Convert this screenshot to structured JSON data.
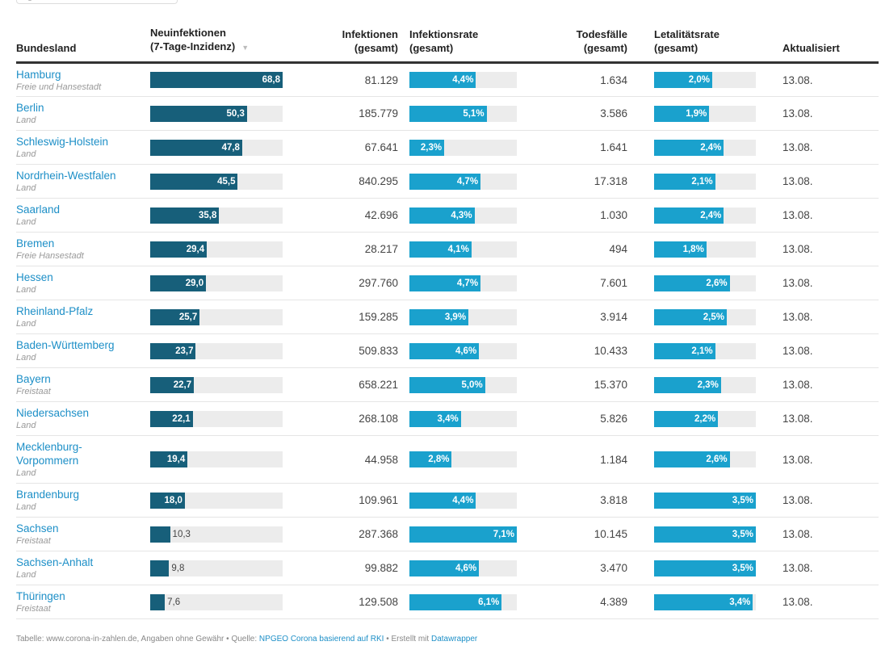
{
  "headers": {
    "state": "Bundesland",
    "incidence_line1": "Neuinfektionen",
    "incidence_line2": "(7-Tage-Inzidenz)",
    "infections_line1": "Infektionen",
    "infections_line2": "(gesamt)",
    "infection_rate_line1": "Infektionsrate",
    "infection_rate_line2": "(gesamt)",
    "deaths_line1": "Todesfälle",
    "deaths_line2": "(gesamt)",
    "lethality_line1": "Letalitätsrate",
    "lethality_line2": "(gesamt)",
    "updated": "Aktualisiert",
    "sort_icon": "▼"
  },
  "colors": {
    "incidence_bar": "#175f7a",
    "rate_bar": "#1aa1cd",
    "bar_track": "#ececec",
    "link": "#1d8fc7"
  },
  "scales": {
    "incidence_max": 68.8,
    "infection_rate_max": 7.1,
    "lethality_max": 3.5
  },
  "rows": [
    {
      "state": "Hamburg",
      "type": "Freie und Hansestadt",
      "incidence": 68.8,
      "incidence_label": "68,8",
      "infections": "81.129",
      "infection_rate": 4.4,
      "infection_rate_label": "4,4%",
      "deaths": "1.634",
      "lethality": 2.0,
      "lethality_label": "2,0%",
      "updated": "13.08."
    },
    {
      "state": "Berlin",
      "type": "Land",
      "incidence": 50.3,
      "incidence_label": "50,3",
      "infections": "185.779",
      "infection_rate": 5.1,
      "infection_rate_label": "5,1%",
      "deaths": "3.586",
      "lethality": 1.9,
      "lethality_label": "1,9%",
      "updated": "13.08."
    },
    {
      "state": "Schleswig-Holstein",
      "type": "Land",
      "incidence": 47.8,
      "incidence_label": "47,8",
      "infections": "67.641",
      "infection_rate": 2.3,
      "infection_rate_label": "2,3%",
      "deaths": "1.641",
      "lethality": 2.4,
      "lethality_label": "2,4%",
      "updated": "13.08."
    },
    {
      "state": "Nordrhein-Westfalen",
      "type": "Land",
      "incidence": 45.5,
      "incidence_label": "45,5",
      "infections": "840.295",
      "infection_rate": 4.7,
      "infection_rate_label": "4,7%",
      "deaths": "17.318",
      "lethality": 2.1,
      "lethality_label": "2,1%",
      "updated": "13.08."
    },
    {
      "state": "Saarland",
      "type": "Land",
      "incidence": 35.8,
      "incidence_label": "35,8",
      "infections": "42.696",
      "infection_rate": 4.3,
      "infection_rate_label": "4,3%",
      "deaths": "1.030",
      "lethality": 2.4,
      "lethality_label": "2,4%",
      "updated": "13.08."
    },
    {
      "state": "Bremen",
      "type": "Freie Hansestadt",
      "incidence": 29.4,
      "incidence_label": "29,4",
      "infections": "28.217",
      "infection_rate": 4.1,
      "infection_rate_label": "4,1%",
      "deaths": "494",
      "lethality": 1.8,
      "lethality_label": "1,8%",
      "updated": "13.08."
    },
    {
      "state": "Hessen",
      "type": "Land",
      "incidence": 29.0,
      "incidence_label": "29,0",
      "infections": "297.760",
      "infection_rate": 4.7,
      "infection_rate_label": "4,7%",
      "deaths": "7.601",
      "lethality": 2.6,
      "lethality_label": "2,6%",
      "updated": "13.08."
    },
    {
      "state": "Rheinland-Pfalz",
      "type": "Land",
      "incidence": 25.7,
      "incidence_label": "25,7",
      "infections": "159.285",
      "infection_rate": 3.9,
      "infection_rate_label": "3,9%",
      "deaths": "3.914",
      "lethality": 2.5,
      "lethality_label": "2,5%",
      "updated": "13.08."
    },
    {
      "state": "Baden-Württemberg",
      "type": "Land",
      "incidence": 23.7,
      "incidence_label": "23,7",
      "infections": "509.833",
      "infection_rate": 4.6,
      "infection_rate_label": "4,6%",
      "deaths": "10.433",
      "lethality": 2.1,
      "lethality_label": "2,1%",
      "updated": "13.08."
    },
    {
      "state": "Bayern",
      "type": "Freistaat",
      "incidence": 22.7,
      "incidence_label": "22,7",
      "infections": "658.221",
      "infection_rate": 5.0,
      "infection_rate_label": "5,0%",
      "deaths": "15.370",
      "lethality": 2.3,
      "lethality_label": "2,3%",
      "updated": "13.08."
    },
    {
      "state": "Niedersachsen",
      "type": "Land",
      "incidence": 22.1,
      "incidence_label": "22,1",
      "infections": "268.108",
      "infection_rate": 3.4,
      "infection_rate_label": "3,4%",
      "deaths": "5.826",
      "lethality": 2.2,
      "lethality_label": "2,2%",
      "updated": "13.08."
    },
    {
      "state": "Mecklenburg-Vorpommern",
      "type": "Land",
      "incidence": 19.4,
      "incidence_label": "19,4",
      "infections": "44.958",
      "infection_rate": 2.8,
      "infection_rate_label": "2,8%",
      "deaths": "1.184",
      "lethality": 2.6,
      "lethality_label": "2,6%",
      "updated": "13.08."
    },
    {
      "state": "Brandenburg",
      "type": "Land",
      "incidence": 18.0,
      "incidence_label": "18,0",
      "infections": "109.961",
      "infection_rate": 4.4,
      "infection_rate_label": "4,4%",
      "deaths": "3.818",
      "lethality": 3.5,
      "lethality_label": "3,5%",
      "updated": "13.08."
    },
    {
      "state": "Sachsen",
      "type": "Freistaat",
      "incidence": 10.3,
      "incidence_label": "10,3",
      "infections": "287.368",
      "infection_rate": 7.1,
      "infection_rate_label": "7,1%",
      "deaths": "10.145",
      "lethality": 3.5,
      "lethality_label": "3,5%",
      "updated": "13.08."
    },
    {
      "state": "Sachsen-Anhalt",
      "type": "Land",
      "incidence": 9.8,
      "incidence_label": "9,8",
      "infections": "99.882",
      "infection_rate": 4.6,
      "infection_rate_label": "4,6%",
      "deaths": "3.470",
      "lethality": 3.5,
      "lethality_label": "3,5%",
      "updated": "13.08."
    },
    {
      "state": "Thüringen",
      "type": "Freistaat",
      "incidence": 7.6,
      "incidence_label": "7,6",
      "infections": "129.508",
      "infection_rate": 6.1,
      "infection_rate_label": "6,1%",
      "deaths": "4.389",
      "lethality": 3.4,
      "lethality_label": "3,4%",
      "updated": "13.08."
    }
  ],
  "footer": {
    "prefix": "Tabelle: www.corona-in-zahlen.de, Angaben ohne Gewähr • Quelle: ",
    "source_link": "NPGEO Corona basierend auf RKI",
    "middle": " • Erstellt mit ",
    "tool_link": "Datawrapper"
  }
}
